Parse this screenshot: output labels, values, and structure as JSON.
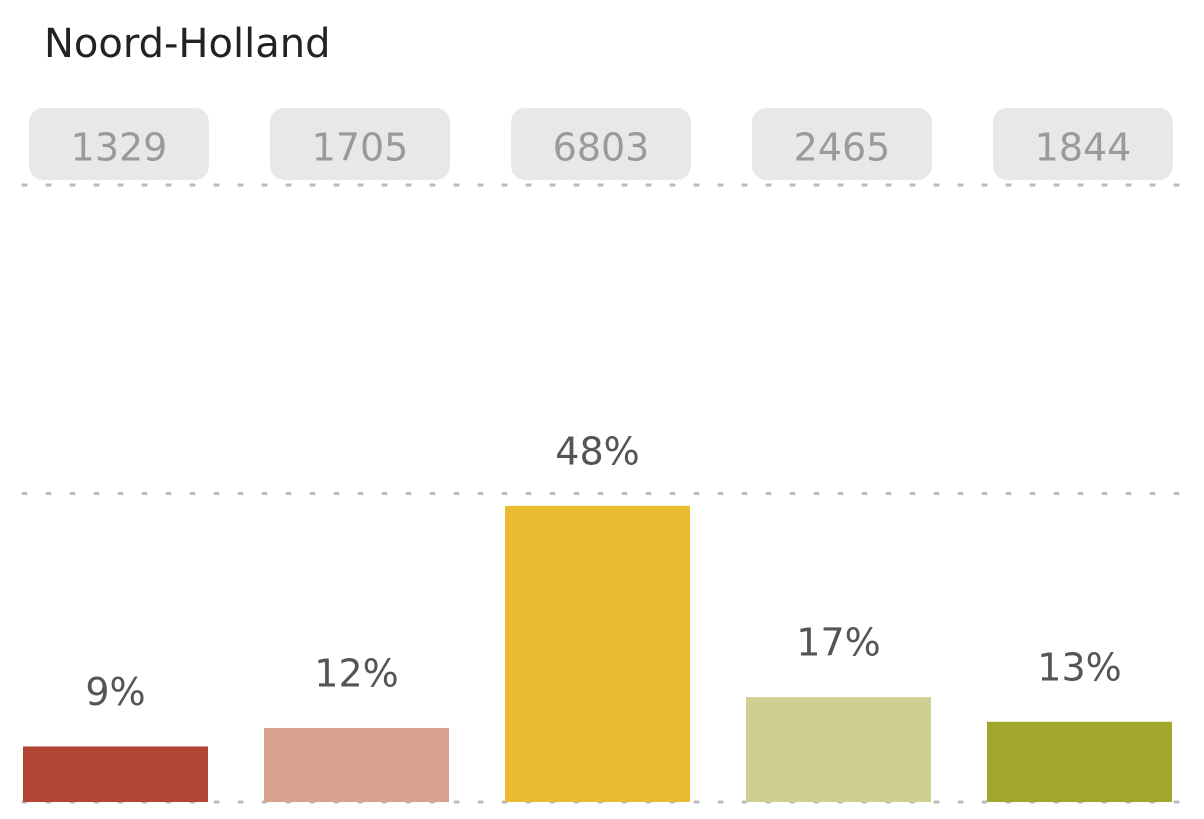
{
  "chart_data": {
    "type": "bar",
    "title": "Noord-Holland",
    "counts": [
      1329,
      1705,
      6803,
      2465,
      1844
    ],
    "values": [
      9,
      12,
      48,
      17,
      13
    ],
    "value_labels": [
      "9%",
      "12%",
      "48%",
      "17%",
      "13%"
    ],
    "colors": [
      "#b34534",
      "#d8a38e",
      "#ebbc31",
      "#cfcf91",
      "#a1a72a"
    ],
    "ylim": [
      0,
      100
    ],
    "yticks": [
      0,
      50,
      100
    ],
    "grid": true
  }
}
